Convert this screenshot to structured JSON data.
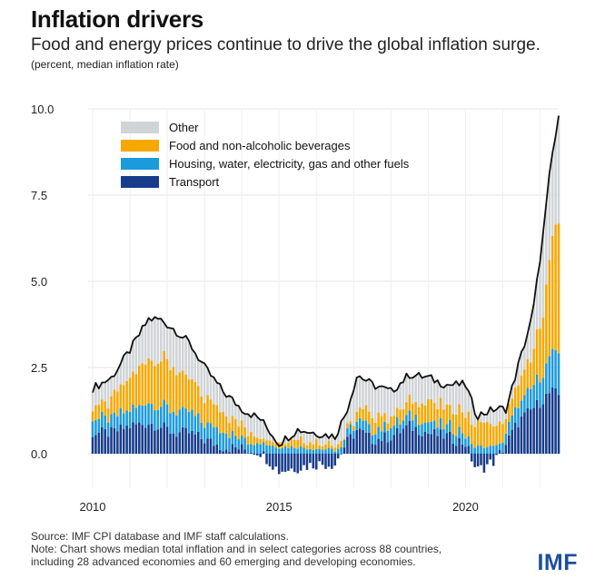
{
  "header": {
    "title": "Inflation drivers",
    "subtitle": "Food and energy prices continue to drive the global inflation surge.",
    "units": "(percent, median inflation rate)"
  },
  "footer": {
    "source": "Source: IMF CPI database and IMF staff calculations.",
    "note_line1": "Note: Chart shows median total inflation and in select categories across 88 countries,",
    "note_line2": "including 28 advanced economies and 60 emerging and developing economies.",
    "logo": "IMF"
  },
  "colors": {
    "other": "#d0d4d6",
    "food": "#f5a800",
    "housing": "#1c9bdc",
    "transport": "#173c8c",
    "total": "#111111",
    "grid": "#e6e6e6"
  },
  "chart_data": {
    "type": "bar",
    "stacked": true,
    "with_line": true,
    "title": "Inflation drivers",
    "ylabel": "(percent, median inflation rate)",
    "xlim": [
      2010,
      2022.5
    ],
    "ylim": [
      -1,
      10
    ],
    "yticks": [
      "10.0",
      "7.5",
      "5.0",
      "2.5",
      "0.0"
    ],
    "yticks_values": [
      10,
      7.5,
      5,
      2.5,
      0
    ],
    "xticks": [
      "2010",
      "2015",
      "2020"
    ],
    "xticks_values": [
      2010,
      2015,
      2020
    ],
    "grid": true,
    "legend_position": "top-left",
    "legend": [
      {
        "key": "other",
        "label": "Other"
      },
      {
        "key": "food",
        "label": "Food and non-alcoholic beverages"
      },
      {
        "key": "housing",
        "label": "Housing, water, electricity, gas and other fuels"
      },
      {
        "key": "transport",
        "label": "Transport"
      }
    ],
    "anchors": [
      {
        "x": 2010.0,
        "total": 1.9,
        "transport": 0.6,
        "housing": 0.4,
        "food": 0.3
      },
      {
        "x": 2010.5,
        "total": 2.2,
        "transport": 0.6,
        "housing": 0.4,
        "food": 0.5
      },
      {
        "x": 2011.0,
        "total": 3.0,
        "transport": 0.8,
        "housing": 0.5,
        "food": 0.9
      },
      {
        "x": 2011.5,
        "total": 3.9,
        "transport": 0.9,
        "housing": 0.6,
        "food": 1.3
      },
      {
        "x": 2011.8,
        "total": 3.9,
        "transport": 0.8,
        "housing": 0.6,
        "food": 1.4
      },
      {
        "x": 2012.2,
        "total": 3.6,
        "transport": 0.6,
        "housing": 0.6,
        "food": 1.2
      },
      {
        "x": 2012.6,
        "total": 3.2,
        "transport": 0.6,
        "housing": 0.6,
        "food": 1.0
      },
      {
        "x": 2013.0,
        "total": 2.5,
        "transport": 0.4,
        "housing": 0.5,
        "food": 0.8
      },
      {
        "x": 2013.5,
        "total": 1.8,
        "transport": 0.2,
        "housing": 0.5,
        "food": 0.6
      },
      {
        "x": 2014.0,
        "total": 1.3,
        "transport": 0.15,
        "housing": 0.3,
        "food": 0.4
      },
      {
        "x": 2014.5,
        "total": 1.0,
        "transport": 0.05,
        "housing": 0.3,
        "food": 0.2
      },
      {
        "x": 2015.0,
        "total": 0.3,
        "transport": -0.5,
        "housing": 0.2,
        "food": 0.1
      },
      {
        "x": 2015.5,
        "total": 0.7,
        "transport": -0.4,
        "housing": 0.2,
        "food": 0.2
      },
      {
        "x": 2016.0,
        "total": 0.6,
        "transport": -0.3,
        "housing": 0.15,
        "food": 0.2
      },
      {
        "x": 2016.5,
        "total": 0.5,
        "transport": -0.3,
        "housing": 0.1,
        "food": 0.1
      },
      {
        "x": 2016.8,
        "total": 1.2,
        "transport": 0.3,
        "housing": 0.2,
        "food": 0.1
      },
      {
        "x": 2017.1,
        "total": 2.3,
        "transport": 0.7,
        "housing": 0.3,
        "food": 0.3
      },
      {
        "x": 2017.5,
        "total": 2.0,
        "transport": 0.4,
        "housing": 0.3,
        "food": 0.4
      },
      {
        "x": 2018.0,
        "total": 1.8,
        "transport": 0.5,
        "housing": 0.3,
        "food": 0.3
      },
      {
        "x": 2018.5,
        "total": 2.3,
        "transport": 0.8,
        "housing": 0.3,
        "food": 0.4
      },
      {
        "x": 2019.0,
        "total": 2.2,
        "transport": 0.6,
        "housing": 0.3,
        "food": 0.6
      },
      {
        "x": 2019.5,
        "total": 2.0,
        "transport": 0.5,
        "housing": 0.3,
        "food": 0.5
      },
      {
        "x": 2020.0,
        "total": 2.0,
        "transport": 0.3,
        "housing": 0.3,
        "food": 0.6
      },
      {
        "x": 2020.3,
        "total": 1.1,
        "transport": -0.5,
        "housing": 0.2,
        "food": 0.7
      },
      {
        "x": 2020.8,
        "total": 1.3,
        "transport": -0.2,
        "housing": 0.2,
        "food": 0.6
      },
      {
        "x": 2021.1,
        "total": 1.3,
        "transport": 0.3,
        "housing": 0.3,
        "food": 0.5
      },
      {
        "x": 2021.4,
        "total": 2.5,
        "transport": 0.9,
        "housing": 0.5,
        "food": 0.6
      },
      {
        "x": 2021.8,
        "total": 4.0,
        "transport": 1.3,
        "housing": 0.6,
        "food": 0.9
      },
      {
        "x": 2022.1,
        "total": 6.5,
        "transport": 1.6,
        "housing": 0.8,
        "food": 1.8
      },
      {
        "x": 2022.3,
        "total": 8.5,
        "transport": 1.8,
        "housing": 1.1,
        "food": 3.2
      },
      {
        "x": 2022.5,
        "total": 9.7,
        "transport": 1.7,
        "housing": 1.2,
        "food": 3.8
      }
    ]
  }
}
